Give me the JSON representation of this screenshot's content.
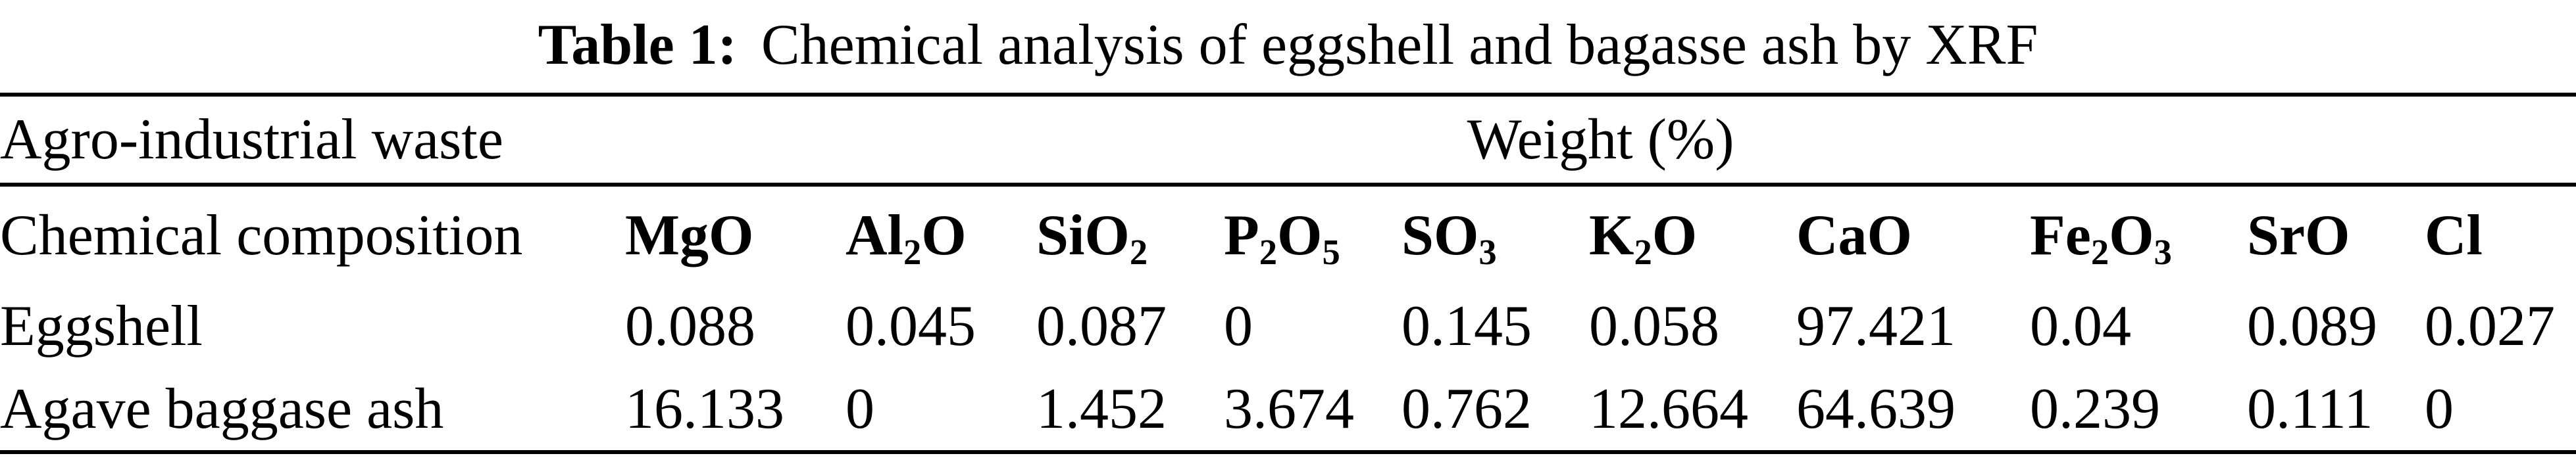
{
  "title": {
    "label": "Table 1:",
    "text": "Chemical analysis of eggshell and bagasse ash by XRF"
  },
  "table": {
    "group_header": {
      "left": "Agro-industrial waste",
      "right": "Weight (%)"
    },
    "header": {
      "label": "Chemical composition",
      "columns": [
        "MgO",
        "Al_2O",
        "SiO_2",
        "P_2O_5",
        "SO_3",
        "K_2O",
        "CaO",
        "Fe_2O_3",
        "SrO",
        "Cl"
      ]
    },
    "rows": [
      {
        "label": "Eggshell",
        "values": [
          "0.088",
          "0.045",
          "0.087",
          "0",
          "0.145",
          "0.058",
          "97.421",
          "0.04",
          "0.089",
          "0.027"
        ]
      },
      {
        "label": "Agave baggase ash",
        "values": [
          "16.133",
          "0",
          "1.452",
          "3.674",
          "0.762",
          "12.664",
          "64.639",
          "0.239",
          "0.111",
          "0"
        ]
      }
    ]
  },
  "colors": {
    "text": "#000000",
    "background": "#ffffff",
    "rule": "#000000"
  },
  "chart_data": {
    "type": "table",
    "title": "Table 1: Chemical analysis of eggshell and bagasse ash by XRF",
    "unit": "Weight (%)",
    "categories": [
      "MgO",
      "Al2O",
      "SiO2",
      "P2O5",
      "SO3",
      "K2O",
      "CaO",
      "Fe2O3",
      "SrO",
      "Cl"
    ],
    "series": [
      {
        "name": "Eggshell",
        "values": [
          0.088,
          0.045,
          0.087,
          0,
          0.145,
          0.058,
          97.421,
          0.04,
          0.089,
          0.027
        ]
      },
      {
        "name": "Agave baggase ash",
        "values": [
          16.133,
          0,
          1.452,
          3.674,
          0.762,
          12.664,
          64.639,
          0.239,
          0.111,
          0
        ]
      }
    ]
  }
}
